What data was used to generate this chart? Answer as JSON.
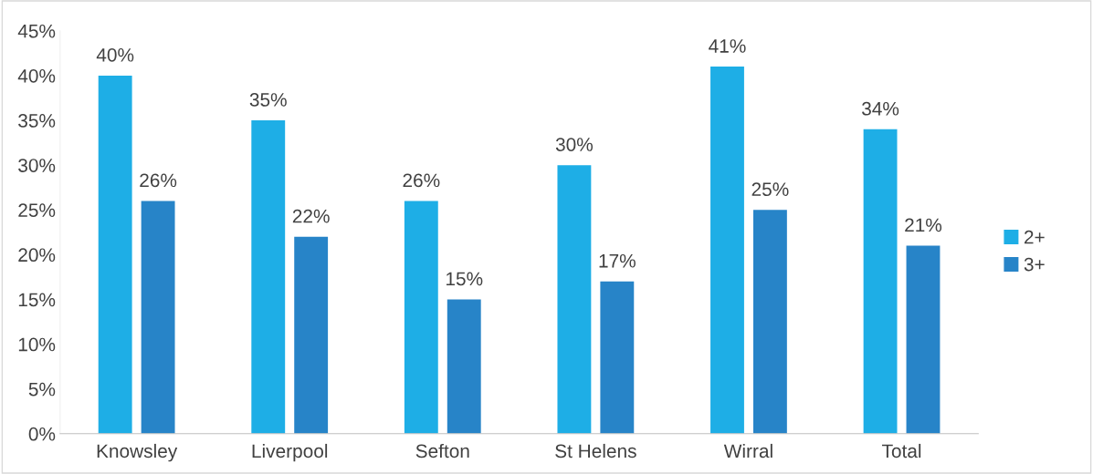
{
  "chart_data": {
    "type": "bar",
    "categories": [
      "Knowsley",
      "Liverpool",
      "Sefton",
      "St Helens",
      "Wirral",
      "Total"
    ],
    "series": [
      {
        "name": "2+",
        "color": "#1eaee6",
        "values": [
          40,
          35,
          26,
          30,
          41,
          34
        ],
        "value_labels": [
          "40%",
          "35%",
          "26%",
          "30%",
          "41%",
          "34%"
        ]
      },
      {
        "name": "3+",
        "color": "#2784c8",
        "values": [
          26,
          22,
          15,
          17,
          25,
          21
        ],
        "value_labels": [
          "26%",
          "22%",
          "15%",
          "17%",
          "25%",
          "21%"
        ]
      }
    ],
    "ylim": [
      0,
      45
    ],
    "yticks": [
      {
        "value": 0,
        "label": "0%"
      },
      {
        "value": 5,
        "label": "5%"
      },
      {
        "value": 10,
        "label": "10%"
      },
      {
        "value": 15,
        "label": "15%"
      },
      {
        "value": 20,
        "label": "20%"
      },
      {
        "value": 25,
        "label": "25%"
      },
      {
        "value": 30,
        "label": "30%"
      },
      {
        "value": 35,
        "label": "35%"
      },
      {
        "value": 40,
        "label": "40%"
      },
      {
        "value": 45,
        "label": "45%"
      }
    ],
    "grid": false,
    "legend": "right"
  }
}
